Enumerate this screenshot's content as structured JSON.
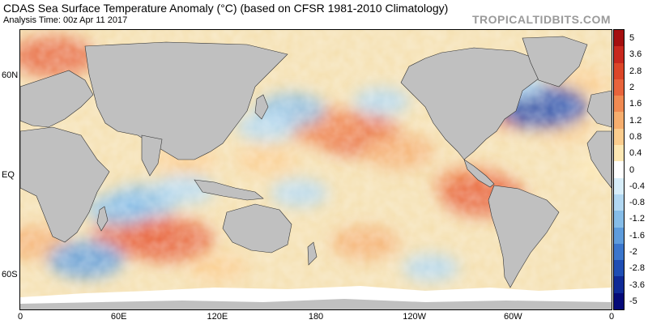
{
  "header": {
    "title": "CDAS Sea Surface Temperature Anomaly (°C) (based on CFSR 1981-2010 Climatology)",
    "subtitle": "Analysis Time: 00z Apr 11 2017",
    "credit": "TROPICALTIDBITS.COM"
  },
  "map": {
    "projection": "equirectangular",
    "lon_range": [
      0,
      360
    ],
    "lat_range": [
      -80,
      88
    ],
    "lat_ticks": [
      {
        "lat": 60,
        "label": "60N"
      },
      {
        "lat": 0,
        "label": "EQ"
      },
      {
        "lat": -60,
        "label": "60S"
      }
    ],
    "lon_ticks": [
      {
        "lon": 0,
        "label": "0"
      },
      {
        "lon": 60,
        "label": "60E"
      },
      {
        "lon": 120,
        "label": "120E"
      },
      {
        "lon": 180,
        "label": "180"
      },
      {
        "lon": 240,
        "label": "120W"
      },
      {
        "lon": 300,
        "label": "60W"
      },
      {
        "lon": 360,
        "label": "0"
      }
    ],
    "land_color": "#c0c0c0",
    "ice_color": "#ffffff",
    "ocean_base_color": "#f5e0b0",
    "anomaly_features": [
      {
        "lon": 205,
        "lat": 25,
        "value": 2.2
      },
      {
        "lon": 185,
        "lat": 30,
        "value": 1.8
      },
      {
        "lon": 230,
        "lat": 15,
        "value": 1.4
      },
      {
        "lon": 275,
        "lat": -5,
        "value": 1.6
      },
      {
        "lon": 282,
        "lat": -12,
        "value": 2.0
      },
      {
        "lon": 90,
        "lat": -38,
        "value": 2.4
      },
      {
        "lon": 70,
        "lat": -35,
        "value": 2.0
      },
      {
        "lon": 210,
        "lat": -40,
        "value": 1.2
      },
      {
        "lon": 300,
        "lat": 40,
        "value": 1.6
      },
      {
        "lon": 330,
        "lat": 30,
        "value": 1.0
      },
      {
        "lon": 340,
        "lat": 55,
        "value": 1.0
      },
      {
        "lon": 20,
        "lat": 72,
        "value": 2.0
      },
      {
        "lon": 10,
        "lat": -40,
        "value": 1.2
      },
      {
        "lon": 100,
        "lat": 10,
        "value": 1.0
      },
      {
        "lon": 150,
        "lat": 10,
        "value": 0.8
      },
      {
        "lon": 165,
        "lat": 40,
        "value": -1.2
      },
      {
        "lon": 150,
        "lat": 30,
        "value": -0.8
      },
      {
        "lon": 75,
        "lat": -15,
        "value": -1.2
      },
      {
        "lon": 60,
        "lat": -20,
        "value": -1.0
      },
      {
        "lon": 100,
        "lat": -8,
        "value": -0.8
      },
      {
        "lon": 220,
        "lat": 45,
        "value": -0.6
      },
      {
        "lon": 170,
        "lat": -10,
        "value": -0.6
      },
      {
        "lon": 318,
        "lat": 42,
        "value": -2.4
      },
      {
        "lon": 300,
        "lat": 55,
        "value": -0.8
      },
      {
        "lon": 40,
        "lat": -50,
        "value": -1.6
      },
      {
        "lon": 250,
        "lat": -55,
        "value": -0.6
      },
      {
        "lon": 120,
        "lat": -55,
        "value": 0.8
      },
      {
        "lon": 355,
        "lat": 5,
        "value": 0.6
      }
    ]
  },
  "colorbar": {
    "levels": [
      -5,
      -3.6,
      -2.8,
      -2,
      -1.6,
      -1.2,
      -0.8,
      -0.4,
      0,
      0.4,
      0.8,
      1.2,
      1.6,
      2,
      2.8,
      3.6,
      5
    ],
    "labels": [
      "5",
      "3.6",
      "2.8",
      "2",
      "1.6",
      "1.2",
      "0.8",
      "0.4",
      "0",
      "-0.4",
      "-0.8",
      "-1.2",
      "-1.6",
      "-2",
      "-2.8",
      "-3.6",
      "-5"
    ],
    "colors_top_to_bottom": [
      "#a50f0f",
      "#c8281e",
      "#dc4628",
      "#e8643c",
      "#f08a52",
      "#f6ae6e",
      "#fbcd8e",
      "#fde8b4",
      "#ffffff",
      "#d8eefa",
      "#b2d8f2",
      "#86bde8",
      "#5e9cdc",
      "#3b76cc",
      "#1f4eb4",
      "#0f2a96",
      "#050a78"
    ]
  }
}
